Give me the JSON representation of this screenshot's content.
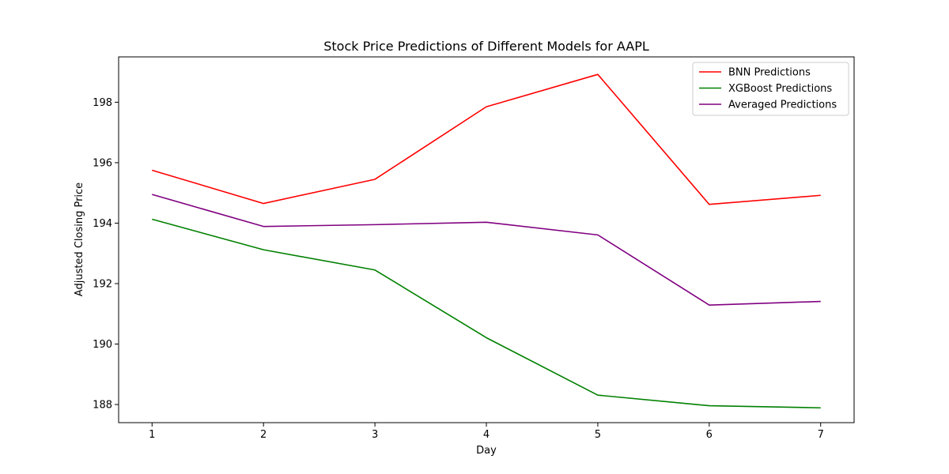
{
  "chart_data": {
    "type": "line",
    "title": "Stock Price Predictions of Different Models for AAPL",
    "xlabel": "Day",
    "ylabel": "Adjusted Closing Price",
    "x": [
      1,
      2,
      3,
      4,
      5,
      6,
      7
    ],
    "xlim": [
      0.7,
      7.3
    ],
    "ylim": [
      187.4,
      199.5
    ],
    "yticks": [
      188,
      190,
      192,
      194,
      196,
      198
    ],
    "grid": false,
    "legend_position": "top-right",
    "series": [
      {
        "name": "BNN Predictions",
        "color": "#ff0000",
        "values": [
          195.75,
          194.65,
          195.45,
          197.85,
          198.92,
          194.62,
          194.92
        ]
      },
      {
        "name": "XGBoost Predictions",
        "color": "#008000",
        "values": [
          194.13,
          193.12,
          192.45,
          190.21,
          188.31,
          187.96,
          187.89
        ]
      },
      {
        "name": "Averaged Predictions",
        "color": "#800080",
        "values": [
          194.95,
          193.89,
          193.95,
          194.03,
          193.61,
          191.29,
          191.41
        ]
      }
    ]
  }
}
